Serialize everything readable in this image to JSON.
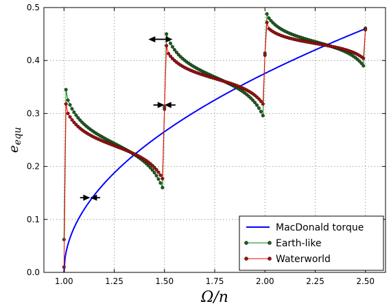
{
  "chart_data": {
    "type": "line",
    "title": "",
    "xlabel": "Ω/n",
    "ylabel": "e_equ",
    "xlim": [
      0.9,
      2.6
    ],
    "ylim": [
      0.0,
      0.5
    ],
    "x_ticks": [
      "1.00",
      "1.25",
      "1.50",
      "1.75",
      "2.00",
      "2.25",
      "2.50"
    ],
    "y_ticks": [
      "0.0",
      "0.1",
      "0.2",
      "0.3",
      "0.4",
      "0.5"
    ],
    "grid": true,
    "legend_position": "lower-right",
    "series": [
      {
        "name": "MacDonald torque",
        "color": "#0000ff",
        "marker": "none",
        "function": "e = 0.46 * sqrt((x - 1) / 1.5)",
        "x_range": [
          1.0,
          2.5
        ]
      },
      {
        "name": "Earth-like",
        "color": "#008000",
        "marker_fill": "#1e5e1e",
        "marker": "circle",
        "points": [
          [
            1.0,
            0.062
          ],
          [
            1.01,
            0.345
          ],
          [
            1.02,
            0.325
          ],
          [
            1.49,
            0.16
          ],
          [
            1.5,
            0.308
          ],
          [
            1.51,
            0.45
          ],
          [
            1.52,
            0.44
          ],
          [
            1.99,
            0.296
          ],
          [
            2.0,
            0.414
          ],
          [
            2.01,
            0.488
          ],
          [
            2.02,
            0.48
          ],
          [
            2.49,
            0.39
          ],
          [
            2.5,
            0.461
          ]
        ]
      },
      {
        "name": "Waterworld",
        "color": "#ff0000",
        "marker_fill": "#a01010",
        "marker": "circle",
        "points": [
          [
            1.0,
            0.01
          ],
          [
            1.01,
            0.318
          ],
          [
            1.02,
            0.3
          ],
          [
            1.49,
            0.177
          ],
          [
            1.5,
            0.312
          ],
          [
            1.51,
            0.428
          ],
          [
            1.52,
            0.413
          ],
          [
            1.99,
            0.318
          ],
          [
            2.0,
            0.41
          ],
          [
            2.01,
            0.472
          ],
          [
            2.02,
            0.46
          ],
          [
            2.49,
            0.404
          ],
          [
            2.5,
            0.458
          ]
        ]
      }
    ],
    "annotations": [
      {
        "type": "double-arrow",
        "x": 1.48,
        "y": 0.44,
        "width": 0.12
      },
      {
        "type": "converging-arrows",
        "x": 1.5,
        "y": 0.316,
        "width": 0.11
      },
      {
        "type": "converging-arrows",
        "x": 1.13,
        "y": 0.141,
        "width": 0.1
      }
    ]
  }
}
